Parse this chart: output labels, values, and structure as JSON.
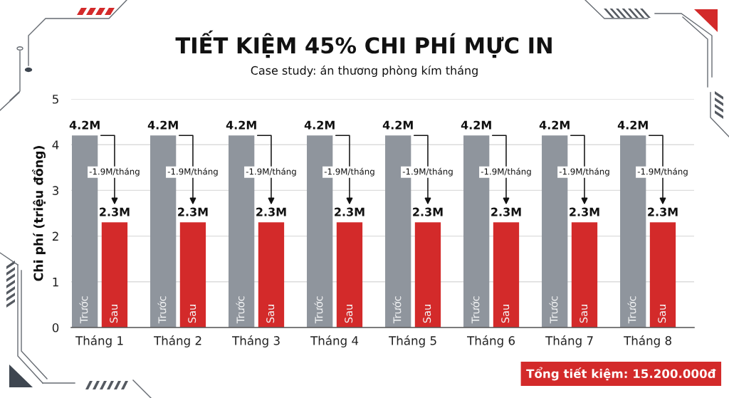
{
  "chart_data": {
    "type": "bar",
    "title": "TIẾT KIỆM 45% CHI PHÍ MỰC IN",
    "subtitle": "Case study: án thương phòng kím tháng",
    "ylabel": "Chi phí (triệu đồng)",
    "categories": [
      "Tháng 1",
      "Tháng 2",
      "Tháng 3",
      "Tháng 4",
      "Tháng 5",
      "Tháng 6",
      "Tháng 7",
      "Tháng 8"
    ],
    "series": [
      {
        "name": "Trước",
        "color": "#8f959d",
        "values": [
          4.2,
          4.2,
          4.2,
          4.2,
          4.2,
          4.2,
          4.2,
          4.2
        ],
        "value_labels": [
          "4.2M",
          "4.2M",
          "4.2M",
          "4.2M",
          "4.2M",
          "4.2M",
          "4.2M",
          "4.2M"
        ]
      },
      {
        "name": "Sau",
        "color": "#d32a2a",
        "values": [
          2.3,
          2.3,
          2.3,
          2.3,
          2.3,
          2.3,
          2.3,
          2.3
        ],
        "value_labels": [
          "2.3M",
          "2.3M",
          "2.3M",
          "2.3M",
          "2.3M",
          "2.3M",
          "2.3M",
          "2.3M"
        ]
      }
    ],
    "ylim": [
      0,
      5
    ],
    "yticks": [
      0,
      1,
      2,
      3,
      4,
      5
    ],
    "grid": "y",
    "annotations": [
      {
        "text": "-1.9M/tháng",
        "x": "Tháng 1",
        "y": 3.4
      },
      {
        "text": "-1.9M/tháng",
        "x": "Tháng 2",
        "y": 3.4
      },
      {
        "text": "-1.9M/tháng",
        "x": "Tháng 3",
        "y": 3.4
      },
      {
        "text": "-1.9M/tháng",
        "x": "Tháng 4",
        "y": 3.4
      },
      {
        "text": "-1.9M/tháng",
        "x": "Tháng 5",
        "y": 3.4
      },
      {
        "text": "-1.9M/tháng",
        "x": "Tháng 6",
        "y": 3.4
      },
      {
        "text": "-1.9M/tháng",
        "x": "Tháng 7",
        "y": 3.4
      },
      {
        "text": "-1.9M/tháng",
        "x": "Tháng 8",
        "y": 3.4
      },
      "Tổng tiết kiệm: 15.200.000đ"
    ]
  }
}
